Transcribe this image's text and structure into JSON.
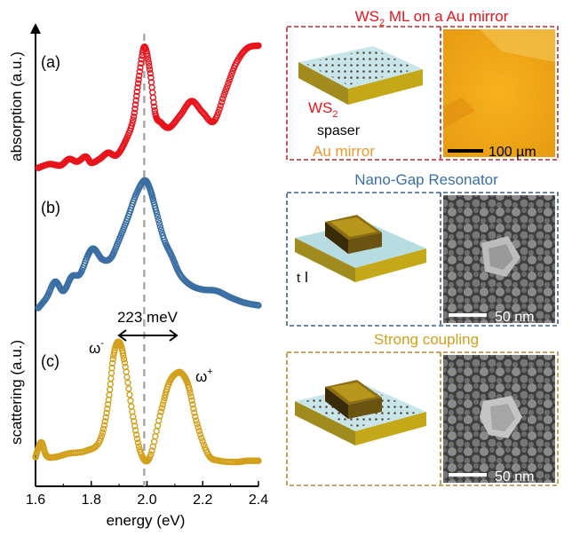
{
  "chart_data": {
    "type": "scatter",
    "xlabel": "energy (eV)",
    "ylabel_top": "absorption (a.u.)",
    "ylabel_bottom": "scattering (a.u.)",
    "xlim": [
      1.6,
      2.4
    ],
    "xticks": [
      "1.6",
      "1.8",
      "2.0",
      "2.2",
      "2.4"
    ],
    "dashed_line_x": 1.99,
    "annotation_splitting": "223 meV",
    "label_omega_minus": "ω",
    "label_omega_minus_sup": "-",
    "label_omega_plus": "ω",
    "label_omega_plus_sup": "+",
    "panels": [
      {
        "label": "(a)",
        "color": "#e8141c",
        "x": [
          1.61,
          1.65,
          1.69,
          1.72,
          1.75,
          1.78,
          1.8,
          1.83,
          1.86,
          1.89,
          1.92,
          1.95,
          1.97,
          1.99,
          2.01,
          2.03,
          2.05,
          2.08,
          2.12,
          2.16,
          2.2,
          2.24,
          2.28,
          2.32,
          2.36,
          2.4
        ],
        "y": [
          0.02,
          0.05,
          0.04,
          0.09,
          0.07,
          0.11,
          0.06,
          0.09,
          0.14,
          0.12,
          0.22,
          0.4,
          0.72,
          0.98,
          0.8,
          0.45,
          0.38,
          0.34,
          0.44,
          0.55,
          0.46,
          0.39,
          0.62,
          0.85,
          0.97,
          0.99
        ]
      },
      {
        "label": "(b)",
        "color": "#3a6fa4",
        "x": [
          1.61,
          1.64,
          1.67,
          1.7,
          1.73,
          1.76,
          1.79,
          1.81,
          1.84,
          1.87,
          1.9,
          1.93,
          1.96,
          1.99,
          2.01,
          2.03,
          2.06,
          2.09,
          2.12,
          2.16,
          2.2,
          2.25,
          2.3,
          2.35,
          2.4
        ],
        "y": [
          0.02,
          0.1,
          0.22,
          0.15,
          0.26,
          0.28,
          0.43,
          0.47,
          0.39,
          0.4,
          0.54,
          0.7,
          0.88,
          0.99,
          0.93,
          0.78,
          0.55,
          0.41,
          0.27,
          0.19,
          0.16,
          0.15,
          0.1,
          0.06,
          0.04
        ]
      },
      {
        "label": "(c)",
        "color": "#d2a01c",
        "x": [
          1.6,
          1.62,
          1.64,
          1.67,
          1.72,
          1.78,
          1.83,
          1.86,
          1.88,
          1.9,
          1.92,
          1.95,
          1.98,
          2.01,
          2.05,
          2.08,
          2.11,
          2.13,
          2.15,
          2.18,
          2.22,
          2.26,
          2.32,
          2.36,
          2.4
        ],
        "y": [
          0.05,
          0.17,
          0.06,
          0.05,
          0.08,
          0.1,
          0.18,
          0.48,
          0.88,
          0.99,
          0.82,
          0.38,
          0.07,
          0.05,
          0.42,
          0.66,
          0.74,
          0.72,
          0.62,
          0.32,
          0.07,
          0.02,
          0.01,
          0.02,
          0.02
        ]
      }
    ]
  },
  "right_panels": {
    "top": {
      "title_main": "WS",
      "title_sub": "2",
      "title_rest": " ML on a Au mirror",
      "ws2_label_main": "WS",
      "ws2_label_sub": "2",
      "spaser_label": "spaser",
      "mirror_label": "Au mirror",
      "scalebar_label": "100 µm",
      "title_color": "#e8141c",
      "frame_color": "#c0282d"
    },
    "middle": {
      "title": "Nano-Gap Resonator",
      "gap_label": "t",
      "scalebar_label": "50 nm",
      "title_color": "#3a6fa4",
      "frame_color": "#3a5f8a"
    },
    "bottom": {
      "title": "Strong coupling",
      "scalebar_label": "50 nm",
      "title_color": "#d2a01c",
      "frame_color": "#b08a2a"
    }
  }
}
